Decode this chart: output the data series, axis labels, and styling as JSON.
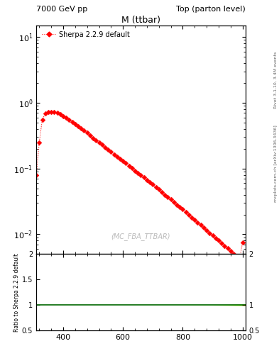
{
  "title_left": "7000 GeV pp",
  "title_right": "Top (parton level)",
  "plot_title": "M (ttbar)",
  "watermark": "(MC_FBA_TTBAR)",
  "right_label_top": "Rivet 3.1.10, 3.4M events",
  "right_label_bottom": "mcplots.cern.ch [arXiv:1306.3436]",
  "legend_label": "Sherpa 2.2.9 default",
  "ylabel_ratio": "Ratio to Sherpa 2.2.9 default",
  "xlim": [
    310,
    1010
  ],
  "ylim_main": [
    0.005,
    15
  ],
  "ylim_ratio": [
    0.5,
    2.0
  ],
  "xticks": [
    400,
    600,
    800,
    1000
  ],
  "line_color": "#ff0000",
  "ratio_line_color": "#006600",
  "ratio_band_inner": "#00bb00",
  "ratio_band_outer": "#ccff44",
  "background_color": "#ffffff",
  "x_data": [
    310,
    320,
    330,
    340,
    350,
    360,
    370,
    380,
    390,
    400,
    410,
    420,
    430,
    440,
    450,
    460,
    470,
    480,
    490,
    500,
    510,
    520,
    530,
    540,
    550,
    560,
    570,
    580,
    590,
    600,
    610,
    620,
    630,
    640,
    650,
    660,
    670,
    680,
    690,
    700,
    710,
    720,
    730,
    740,
    750,
    760,
    770,
    780,
    790,
    800,
    810,
    820,
    830,
    840,
    850,
    860,
    870,
    880,
    890,
    900,
    910,
    920,
    930,
    940,
    950,
    960,
    970,
    980,
    990,
    1000
  ],
  "y_data": [
    0.08,
    0.25,
    0.55,
    0.68,
    0.72,
    0.73,
    0.72,
    0.7,
    0.67,
    0.63,
    0.59,
    0.55,
    0.51,
    0.47,
    0.44,
    0.41,
    0.38,
    0.35,
    0.32,
    0.29,
    0.27,
    0.25,
    0.23,
    0.21,
    0.195,
    0.18,
    0.165,
    0.153,
    0.141,
    0.13,
    0.12,
    0.11,
    0.101,
    0.093,
    0.086,
    0.079,
    0.073,
    0.067,
    0.062,
    0.057,
    0.052,
    0.048,
    0.044,
    0.04,
    0.037,
    0.034,
    0.031,
    0.028,
    0.026,
    0.024,
    0.022,
    0.02,
    0.018,
    0.0165,
    0.015,
    0.0138,
    0.0126,
    0.0115,
    0.0105,
    0.0096,
    0.0088,
    0.008,
    0.0073,
    0.0067,
    0.0061,
    0.0056,
    0.0051,
    0.0046,
    0.0042,
    0.0075
  ],
  "ratio_band_x": [
    310,
    400,
    500,
    600,
    700,
    800,
    850,
    900,
    950,
    1010
  ],
  "ratio_band_inner_y_low": [
    0.9998,
    0.9998,
    0.9998,
    0.9997,
    0.9996,
    0.9993,
    0.999,
    0.998,
    0.996,
    0.993
  ],
  "ratio_band_inner_y_high": [
    1.0002,
    1.0002,
    1.0002,
    1.0003,
    1.0004,
    1.0007,
    1.001,
    1.002,
    1.004,
    1.007
  ],
  "ratio_band_outer_y_low": [
    0.9998,
    0.9998,
    0.9997,
    0.9995,
    0.999,
    0.998,
    0.996,
    0.994,
    0.99,
    0.982
  ],
  "ratio_band_outer_y_high": [
    1.0002,
    1.0002,
    1.0003,
    1.0005,
    1.001,
    1.002,
    1.004,
    1.006,
    1.01,
    1.018
  ]
}
